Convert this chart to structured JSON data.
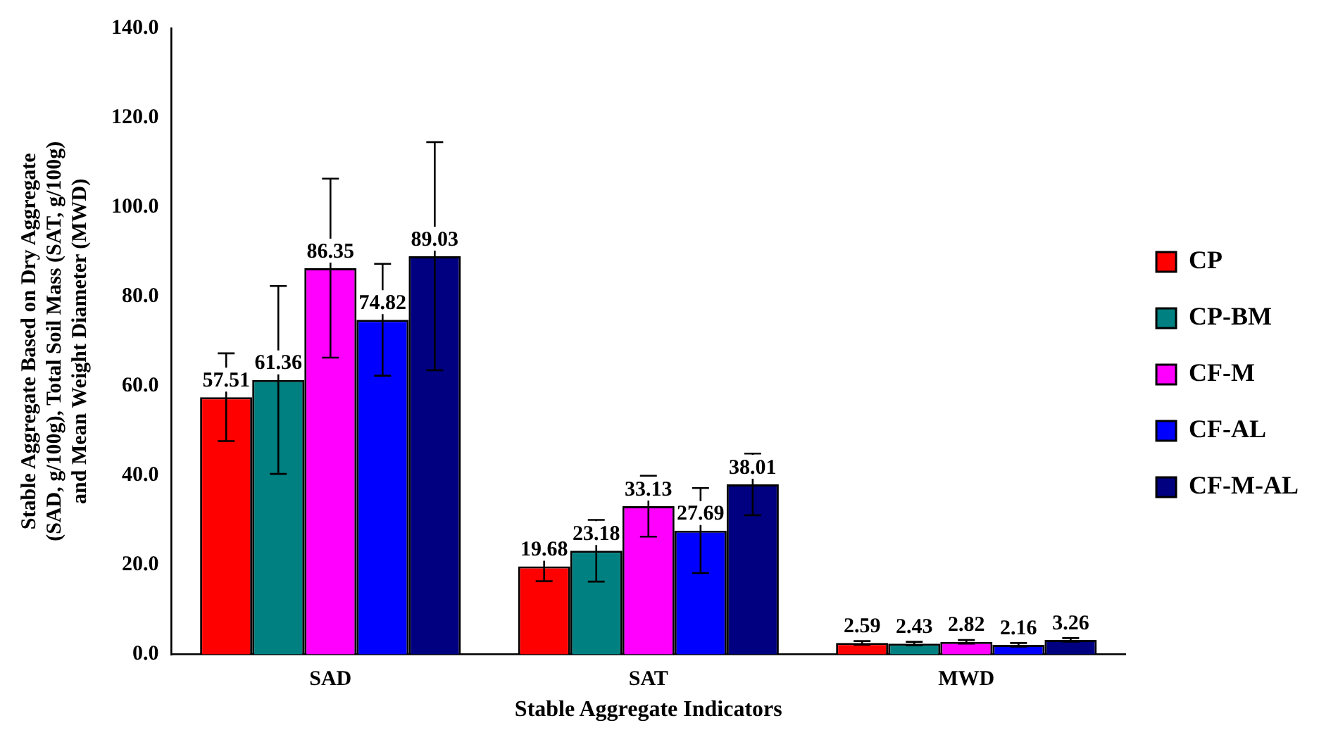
{
  "chart_data": {
    "type": "bar",
    "xlabel": "Stable Aggregate Indicators",
    "ylabel": "Stable Aggregate Based on Dry Aggregate\n(SAD, g/100g), Total Soil Mass (SAT, g/100g)\nand Mean Weight Diameter (MWD)",
    "categories": [
      "SAD",
      "SAT",
      "MWD"
    ],
    "series": [
      {
        "name": "CP",
        "color": "#ff0000",
        "values": [
          57.51,
          19.68,
          2.59
        ],
        "errors": [
          9.8,
          3.3,
          0.4
        ]
      },
      {
        "name": "CP-BM",
        "color": "#008080",
        "values": [
          61.36,
          23.18,
          2.43
        ],
        "errors": [
          21,
          6.9,
          0.4
        ]
      },
      {
        "name": "CF-M",
        "color": "#ff00ff",
        "values": [
          86.35,
          33.13,
          2.82
        ],
        "errors": [
          20,
          6.8,
          0.4
        ]
      },
      {
        "name": "CF-AL",
        "color": "#0000ff",
        "values": [
          74.82,
          27.69,
          2.16
        ],
        "errors": [
          12.5,
          9.5,
          0.4
        ]
      },
      {
        "name": "CF-M-AL",
        "color": "#000080",
        "values": [
          89.03,
          38.01,
          3.26
        ],
        "errors": [
          25.5,
          6.9,
          0.4
        ]
      }
    ],
    "ylim": [
      0,
      140
    ],
    "yticks": [
      {
        "value": 0,
        "label": "0.0"
      },
      {
        "value": 20,
        "label": "20.0"
      },
      {
        "value": 40,
        "label": "40.0"
      },
      {
        "value": 60,
        "label": "60.0"
      },
      {
        "value": 80,
        "label": "80.0"
      },
      {
        "value": 100,
        "label": "100.0"
      },
      {
        "value": 120,
        "label": "120.0"
      },
      {
        "value": 140,
        "label": "140.0"
      }
    ],
    "grid": false,
    "legend": "right",
    "data_labels": true
  }
}
